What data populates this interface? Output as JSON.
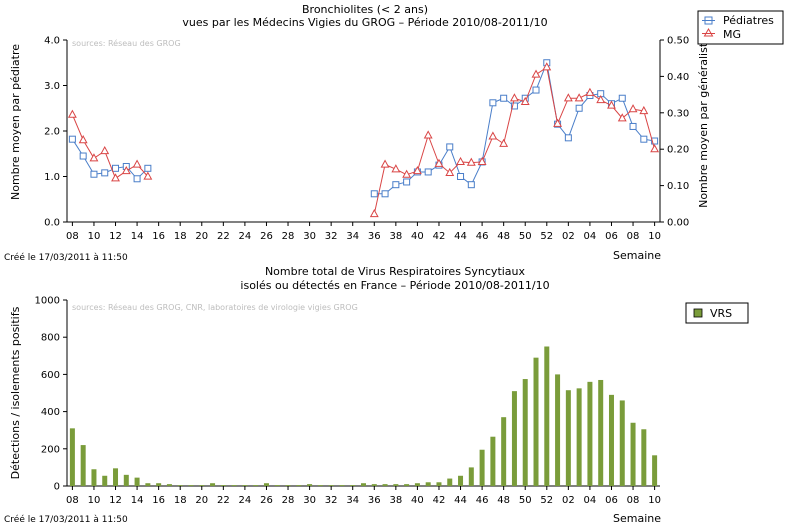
{
  "chart_data": [
    {
      "type": "line",
      "title": "Bronchiolites (< 2 ans)",
      "subtitle": "vues par les Médecins Vigies du GROG – Période 2010/08-2011/10",
      "source": "sources: Réseau des GROG",
      "created": "Créé le 17/03/2011 à 11:50",
      "xlabel": "Semaine",
      "ylabel_left": "Nombre moyen par pédiatre",
      "ylabel_right": "Nombre moyen par généraliste",
      "ylim_left": [
        0,
        4
      ],
      "ylim_right": [
        0,
        0.5
      ],
      "yticks_left": [
        "0.0",
        "1.0",
        "2.0",
        "3.0",
        "4.0"
      ],
      "yticks_right": [
        "0.00",
        "0.10",
        "0.20",
        "0.30",
        "0.40",
        "0.50"
      ],
      "grid": false,
      "legend_position": "top-right",
      "x": [
        "08",
        "09",
        "10",
        "11",
        "12",
        "13",
        "14",
        "15",
        "16",
        "17",
        "18",
        "19",
        "20",
        "21",
        "22",
        "23",
        "24",
        "25",
        "26",
        "27",
        "28",
        "29",
        "30",
        "31",
        "32",
        "33",
        "34",
        "35",
        "36",
        "37",
        "38",
        "39",
        "40",
        "41",
        "42",
        "43",
        "44",
        "45",
        "46",
        "47",
        "48",
        "49",
        "50",
        "51",
        "52",
        "01",
        "02",
        "03",
        "04",
        "05",
        "06",
        "07",
        "08",
        "09",
        "10"
      ],
      "x_tick_labels": [
        "08",
        "10",
        "12",
        "14",
        "16",
        "18",
        "20",
        "22",
        "24",
        "26",
        "28",
        "30",
        "32",
        "34",
        "36",
        "38",
        "40",
        "42",
        "44",
        "46",
        "48",
        "50",
        "52",
        "02",
        "04",
        "06",
        "08",
        "10"
      ],
      "series": [
        {
          "name": "Pédiatres",
          "axis": "left",
          "color": "#4a7ec9",
          "marker": "square",
          "values": [
            1.82,
            1.45,
            1.05,
            1.08,
            1.18,
            1.22,
            0.95,
            1.18,
            null,
            null,
            null,
            null,
            null,
            null,
            null,
            null,
            null,
            null,
            null,
            null,
            null,
            null,
            null,
            null,
            null,
            null,
            null,
            null,
            0.62,
            0.62,
            0.82,
            0.88,
            1.1,
            1.1,
            1.25,
            1.65,
            1.0,
            0.82,
            1.32,
            2.62,
            2.72,
            2.55,
            2.72,
            2.9,
            3.5,
            2.15,
            1.85,
            2.5,
            2.78,
            2.82,
            2.6,
            2.72,
            2.1,
            1.82,
            1.78
          ]
        },
        {
          "name": "MG",
          "axis": "right",
          "color": "#d94545",
          "marker": "triangle",
          "values": [
            0.295,
            0.225,
            0.175,
            0.195,
            0.12,
            0.14,
            0.158,
            0.125,
            null,
            null,
            null,
            null,
            null,
            null,
            null,
            null,
            null,
            null,
            null,
            null,
            null,
            null,
            null,
            null,
            null,
            null,
            null,
            null,
            0.022,
            0.158,
            0.145,
            0.13,
            0.14,
            0.238,
            0.16,
            0.135,
            0.165,
            0.163,
            0.165,
            0.235,
            0.215,
            0.34,
            0.33,
            0.405,
            0.425,
            0.27,
            0.34,
            0.34,
            0.355,
            0.335,
            0.32,
            0.285,
            0.31,
            0.305,
            0.2
          ]
        }
      ]
    },
    {
      "type": "bar",
      "title": "Nombre total de Virus Respiratoires Syncytiaux",
      "subtitle": "isolés ou détectés en France – Période 2010/08-2011/10",
      "source": "sources: Réseau des GROG, CNR, laboratoires de virologie vigies GROG",
      "created": "Créé le 17/03/2011 à 11:50",
      "xlabel": "Semaine",
      "ylabel": "Détections / isolements positifs",
      "ylim": [
        0,
        1000
      ],
      "yticks": [
        "0",
        "200",
        "400",
        "600",
        "800",
        "1000"
      ],
      "grid": false,
      "legend_position": "top-right",
      "categories": [
        "08",
        "09",
        "10",
        "11",
        "12",
        "13",
        "14",
        "15",
        "16",
        "17",
        "18",
        "19",
        "20",
        "21",
        "22",
        "23",
        "24",
        "25",
        "26",
        "27",
        "28",
        "29",
        "30",
        "31",
        "32",
        "33",
        "34",
        "35",
        "36",
        "37",
        "38",
        "39",
        "40",
        "41",
        "42",
        "43",
        "44",
        "45",
        "46",
        "47",
        "48",
        "49",
        "50",
        "51",
        "52",
        "01",
        "02",
        "03",
        "04",
        "05",
        "06",
        "07",
        "08",
        "09",
        "10"
      ],
      "x_tick_labels": [
        "08",
        "10",
        "12",
        "14",
        "16",
        "18",
        "20",
        "22",
        "24",
        "26",
        "28",
        "30",
        "32",
        "34",
        "36",
        "38",
        "40",
        "42",
        "44",
        "46",
        "48",
        "50",
        "52",
        "02",
        "04",
        "06",
        "08",
        "10"
      ],
      "series": [
        {
          "name": "VRS",
          "color": "#7a9c3a",
          "values": [
            310,
            220,
            90,
            55,
            95,
            60,
            45,
            15,
            15,
            10,
            5,
            5,
            5,
            15,
            5,
            5,
            5,
            5,
            15,
            5,
            5,
            5,
            10,
            5,
            5,
            5,
            5,
            15,
            10,
            10,
            10,
            10,
            15,
            20,
            20,
            40,
            55,
            100,
            195,
            265,
            370,
            510,
            575,
            690,
            750,
            600,
            515,
            525,
            560,
            570,
            490,
            460,
            340,
            305,
            165
          ]
        }
      ]
    }
  ]
}
